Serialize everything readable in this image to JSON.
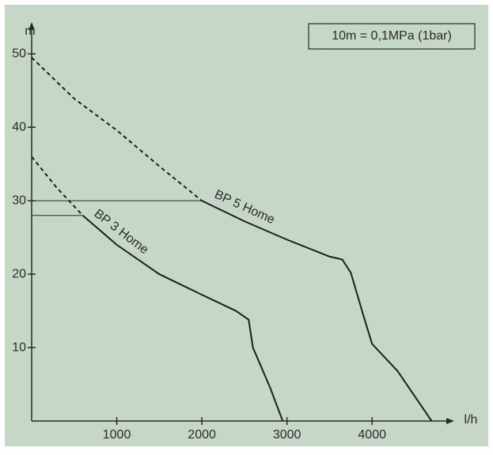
{
  "chart_data": {
    "type": "line",
    "x_label": "l/h",
    "y_label": "m",
    "note": "10m = 0,1MPa (1bar)",
    "xlim": [
      0,
      4900
    ],
    "ylim": [
      0,
      54
    ],
    "xticks": [
      1000,
      2000,
      3000,
      4000
    ],
    "yticks": [
      10,
      20,
      30,
      40,
      50
    ],
    "series": [
      {
        "name": "BP 5 Home",
        "color": "#1e1e1e",
        "dashed": {
          "x": [
            0,
            500,
            1000,
            1500,
            2000
          ],
          "values": [
            49.5,
            43.9,
            39.6,
            34.7,
            30
          ]
        },
        "x": [
          2000,
          2500,
          3000,
          3500,
          3650,
          3750,
          3900,
          4000,
          4300,
          4700
        ],
        "values": [
          30,
          27.2,
          24.7,
          22.4,
          22,
          20.2,
          14.3,
          10.5,
          6.8,
          0
        ]
      },
      {
        "name": "BP 3 Home",
        "color": "#1e1e1e",
        "dashed": {
          "x": [
            0,
            300,
            600
          ],
          "values": [
            36,
            31.7,
            28
          ]
        },
        "x": [
          600,
          1000,
          1500,
          2000,
          2400,
          2550,
          2600,
          2800,
          2950
        ],
        "values": [
          28,
          24,
          20,
          17.2,
          15,
          13.8,
          10,
          4.6,
          0
        ]
      }
    ],
    "hlines": [
      {
        "y": 30,
        "x": [
          0,
          2000
        ]
      },
      {
        "y": 28,
        "x": [
          0,
          600
        ]
      }
    ]
  }
}
